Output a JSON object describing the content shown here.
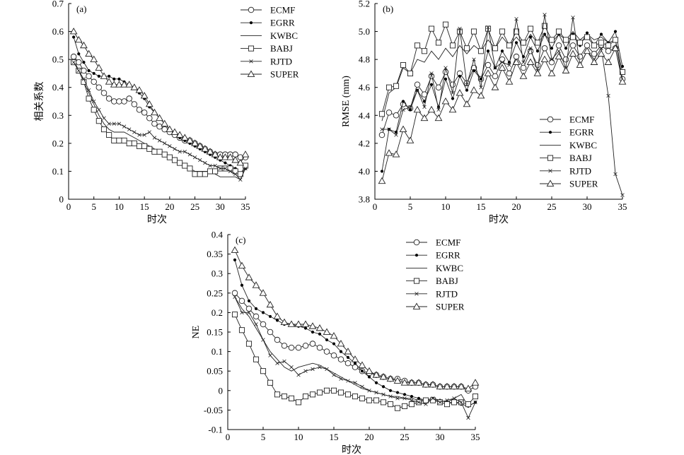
{
  "chart_data": [
    {
      "type": "line",
      "panel_label": "(a)",
      "xlabel": "时次",
      "ylabel": "相关系数",
      "xlim": [
        0,
        35
      ],
      "ylim": [
        0,
        0.7
      ],
      "xticks": [
        "0",
        "5",
        "10",
        "15",
        "20",
        "25",
        "30",
        "35"
      ],
      "yticks": [
        "0",
        "0.1",
        "0.2",
        "0.3",
        "0.4",
        "0.5",
        "0.6",
        "0.7"
      ],
      "legend_position": "top-right",
      "x": [
        1,
        2,
        3,
        4,
        5,
        6,
        7,
        8,
        9,
        10,
        11,
        12,
        13,
        14,
        15,
        16,
        17,
        18,
        19,
        20,
        21,
        22,
        23,
        24,
        25,
        26,
        27,
        28,
        29,
        30,
        31,
        32,
        33,
        34,
        35
      ],
      "series": [
        {
          "name": "ECMF",
          "marker": "circle",
          "values": [
            0.51,
            0.49,
            0.46,
            0.44,
            0.42,
            0.4,
            0.38,
            0.36,
            0.35,
            0.35,
            0.35,
            0.36,
            0.34,
            0.32,
            0.31,
            0.29,
            0.27,
            0.26,
            0.25,
            0.24,
            0.23,
            0.22,
            0.21,
            0.21,
            0.2,
            0.19,
            0.18,
            0.17,
            0.16,
            0.16,
            0.16,
            0.16,
            0.16,
            0.15,
            0.15
          ]
        },
        {
          "name": "EGRR",
          "marker": "dot",
          "values": [
            0.58,
            0.52,
            0.49,
            0.46,
            0.45,
            0.44,
            0.44,
            0.44,
            0.43,
            0.43,
            0.42,
            0.41,
            0.4,
            0.38,
            0.36,
            0.33,
            0.31,
            0.29,
            0.27,
            0.25,
            0.24,
            0.22,
            0.21,
            0.2,
            0.19,
            0.18,
            0.17,
            0.16,
            0.15,
            0.14,
            0.13,
            0.12,
            0.11,
            0.09,
            0.11
          ]
        },
        {
          "name": "KWBC",
          "marker": "none",
          "values": [
            0.5,
            0.46,
            0.42,
            0.38,
            0.34,
            0.3,
            0.27,
            0.25,
            0.24,
            0.24,
            0.24,
            0.23,
            0.22,
            0.21,
            0.2,
            0.19,
            0.18,
            0.17,
            0.16,
            0.15,
            0.14,
            0.13,
            0.12,
            0.11,
            0.1,
            0.1,
            0.1,
            0.1,
            0.09,
            0.08,
            0.08,
            0.08,
            0.08,
            0.07,
            0.12
          ]
        },
        {
          "name": "BABJ",
          "marker": "square",
          "values": [
            0.49,
            0.46,
            0.42,
            0.36,
            0.32,
            0.28,
            0.25,
            0.23,
            0.21,
            0.21,
            0.21,
            0.2,
            0.2,
            0.19,
            0.19,
            0.18,
            0.17,
            0.17,
            0.16,
            0.15,
            0.14,
            0.13,
            0.12,
            0.11,
            0.09,
            0.09,
            0.09,
            0.1,
            0.1,
            0.11,
            0.11,
            0.11,
            0.1,
            0.09,
            0.12
          ]
        },
        {
          "name": "RJTD",
          "marker": "cross",
          "values": [
            0.49,
            0.46,
            0.43,
            0.39,
            0.35,
            0.32,
            0.29,
            0.27,
            0.27,
            0.27,
            0.26,
            0.25,
            0.24,
            0.23,
            0.23,
            0.24,
            0.22,
            0.21,
            0.2,
            0.19,
            0.18,
            0.17,
            0.17,
            0.16,
            0.15,
            0.14,
            0.13,
            0.12,
            0.12,
            0.11,
            0.11,
            0.1,
            0.09,
            0.07,
            0.11
          ]
        },
        {
          "name": "SUPER",
          "marker": "triangle",
          "values": [
            0.6,
            0.57,
            0.55,
            0.52,
            0.5,
            0.47,
            0.44,
            0.42,
            0.41,
            0.41,
            0.41,
            0.41,
            0.4,
            0.39,
            0.37,
            0.34,
            0.31,
            0.29,
            0.27,
            0.25,
            0.24,
            0.23,
            0.22,
            0.21,
            0.2,
            0.19,
            0.18,
            0.17,
            0.16,
            0.15,
            0.15,
            0.15,
            0.14,
            0.13,
            0.16
          ]
        }
      ]
    },
    {
      "type": "line",
      "panel_label": "(b)",
      "xlabel": "时次",
      "ylabel": "RMSE (mm)",
      "xlim": [
        0,
        35
      ],
      "ylim": [
        3.8,
        5.2
      ],
      "xticks": [
        "0",
        "5",
        "10",
        "15",
        "20",
        "25",
        "30",
        "35"
      ],
      "yticks": [
        "3.8",
        "4.0",
        "4.2",
        "4.4",
        "4.6",
        "4.8",
        "5.0",
        "5.2"
      ],
      "legend_position": "bottom-right",
      "x": [
        1,
        2,
        3,
        4,
        5,
        6,
        7,
        8,
        9,
        10,
        11,
        12,
        13,
        14,
        15,
        16,
        17,
        18,
        19,
        20,
        21,
        22,
        23,
        24,
        25,
        26,
        27,
        28,
        29,
        30,
        31,
        32,
        33,
        34,
        35
      ],
      "series": [
        {
          "name": "ECMF",
          "marker": "circle",
          "values": [
            4.26,
            4.42,
            4.4,
            4.48,
            4.45,
            4.62,
            4.55,
            4.68,
            4.6,
            4.71,
            4.62,
            4.7,
            4.63,
            4.74,
            4.66,
            4.76,
            4.68,
            4.8,
            4.7,
            4.82,
            4.74,
            4.86,
            4.76,
            4.88,
            4.78,
            4.9,
            4.8,
            4.9,
            4.82,
            4.9,
            4.84,
            4.9,
            4.86,
            4.88,
            4.66
          ]
        },
        {
          "name": "EGRR",
          "marker": "dot",
          "values": [
            4.0,
            4.3,
            4.28,
            4.5,
            4.44,
            4.58,
            4.5,
            4.62,
            4.46,
            4.66,
            4.52,
            4.68,
            4.58,
            4.72,
            4.66,
            4.86,
            4.74,
            4.86,
            4.78,
            4.92,
            4.82,
            4.96,
            4.86,
            4.98,
            4.88,
            4.98,
            4.88,
            4.98,
            4.9,
            4.99,
            4.9,
            4.98,
            4.92,
            5.0,
            4.75
          ]
        },
        {
          "name": "KWBC",
          "marker": "none",
          "values": [
            4.36,
            4.56,
            4.6,
            4.74,
            4.7,
            4.8,
            4.78,
            4.86,
            4.8,
            4.88,
            4.82,
            4.9,
            4.84,
            4.9,
            4.86,
            4.94,
            4.88,
            4.96,
            4.9,
            4.96,
            4.9,
            4.98,
            4.92,
            4.98,
            4.92,
            4.98,
            4.94,
            5.0,
            4.94,
            4.98,
            4.94,
            4.96,
            4.92,
            4.94,
            4.66
          ]
        },
        {
          "name": "BABJ",
          "marker": "square",
          "values": [
            4.41,
            4.6,
            4.61,
            4.76,
            4.7,
            4.9,
            4.86,
            5.02,
            4.92,
            5.05,
            4.9,
            5.0,
            4.88,
            5.0,
            4.86,
            5.02,
            4.88,
            5.0,
            4.9,
            5.0,
            4.92,
            5.02,
            4.92,
            5.04,
            4.94,
            5.0,
            4.94,
            4.96,
            4.92,
            4.96,
            4.9,
            4.92,
            4.9,
            4.94,
            4.71
          ]
        },
        {
          "name": "RJTD",
          "marker": "cross",
          "values": [
            4.3,
            4.3,
            4.26,
            4.44,
            4.46,
            4.58,
            4.46,
            4.7,
            4.44,
            4.74,
            4.56,
            5.02,
            4.62,
            4.8,
            4.6,
            5.03,
            4.74,
            4.78,
            4.76,
            5.09,
            4.78,
            4.88,
            4.72,
            5.12,
            4.8,
            4.86,
            4.74,
            5.1,
            4.76,
            4.86,
            4.8,
            4.88,
            4.54,
            3.98,
            3.83
          ]
        },
        {
          "name": "SUPER",
          "marker": "triangle",
          "values": [
            3.93,
            4.13,
            4.12,
            4.3,
            4.22,
            4.44,
            4.38,
            4.44,
            4.38,
            4.5,
            4.44,
            4.56,
            4.48,
            4.58,
            4.54,
            4.7,
            4.6,
            4.74,
            4.64,
            4.78,
            4.68,
            4.78,
            4.7,
            4.8,
            4.7,
            4.82,
            4.72,
            4.84,
            4.76,
            4.86,
            4.78,
            4.84,
            4.78,
            4.88,
            4.64
          ]
        }
      ]
    },
    {
      "type": "line",
      "panel_label": "(c)",
      "xlabel": "时次",
      "ylabel": "NE",
      "xlim": [
        0,
        35
      ],
      "ylim": [
        -0.1,
        0.4
      ],
      "xticks": [
        "0",
        "5",
        "10",
        "15",
        "20",
        "25",
        "30",
        "35"
      ],
      "yticks": [
        "-0.1",
        "-0.05",
        "0",
        "0.05",
        "0.1",
        "0.15",
        "0.2",
        "0.25",
        "0.3",
        "0.35",
        "0.4"
      ],
      "legend_position": "top-right",
      "x": [
        1,
        2,
        3,
        4,
        5,
        6,
        7,
        8,
        9,
        10,
        11,
        12,
        13,
        14,
        15,
        16,
        17,
        18,
        19,
        20,
        21,
        22,
        23,
        24,
        25,
        26,
        27,
        28,
        29,
        30,
        31,
        32,
        33,
        34,
        35
      ],
      "series": [
        {
          "name": "ECMF",
          "marker": "circle",
          "values": [
            0.25,
            0.23,
            0.21,
            0.19,
            0.17,
            0.15,
            0.13,
            0.115,
            0.11,
            0.11,
            0.115,
            0.12,
            0.11,
            0.1,
            0.09,
            0.08,
            0.07,
            0.06,
            0.05,
            0.045,
            0.04,
            0.035,
            0.03,
            0.03,
            0.025,
            0.02,
            0.02,
            0.015,
            0.015,
            0.01,
            0.01,
            0.01,
            0.01,
            0.0,
            0.01
          ]
        },
        {
          "name": "EGRR",
          "marker": "dot",
          "values": [
            0.335,
            0.27,
            0.23,
            0.21,
            0.2,
            0.19,
            0.18,
            0.17,
            0.17,
            0.165,
            0.16,
            0.15,
            0.145,
            0.13,
            0.12,
            0.1,
            0.085,
            0.07,
            0.05,
            0.035,
            0.02,
            0.01,
            0.0,
            -0.005,
            -0.01,
            -0.015,
            -0.02,
            -0.025,
            -0.02,
            -0.025,
            -0.03,
            -0.03,
            -0.035,
            -0.04,
            -0.03
          ]
        },
        {
          "name": "KWBC",
          "marker": "none",
          "values": [
            0.24,
            0.21,
            0.19,
            0.16,
            0.13,
            0.1,
            0.08,
            0.06,
            0.05,
            0.06,
            0.065,
            0.07,
            0.065,
            0.055,
            0.045,
            0.035,
            0.025,
            0.015,
            0.005,
            0.0,
            -0.005,
            -0.01,
            -0.015,
            -0.015,
            -0.02,
            -0.02,
            -0.025,
            -0.025,
            -0.02,
            -0.025,
            -0.03,
            -0.02,
            -0.01,
            -0.04,
            -0.03
          ]
        },
        {
          "name": "BABJ",
          "marker": "square",
          "values": [
            0.195,
            0.155,
            0.12,
            0.08,
            0.05,
            0.02,
            -0.01,
            -0.015,
            -0.02,
            -0.03,
            -0.015,
            -0.01,
            -0.005,
            0.0,
            0.0,
            -0.005,
            -0.01,
            -0.015,
            -0.02,
            -0.025,
            -0.025,
            -0.03,
            -0.035,
            -0.045,
            -0.04,
            -0.035,
            -0.03,
            -0.025,
            -0.025,
            -0.03,
            -0.035,
            -0.03,
            -0.03,
            -0.035,
            -0.015
          ]
        },
        {
          "name": "RJTD",
          "marker": "cross",
          "values": [
            0.24,
            0.2,
            0.2,
            0.17,
            0.13,
            0.09,
            0.07,
            0.075,
            0.06,
            0.04,
            0.05,
            0.055,
            0.06,
            0.055,
            0.04,
            0.03,
            0.025,
            0.02,
            0.01,
            0.0,
            -0.005,
            -0.01,
            -0.015,
            -0.02,
            -0.02,
            -0.025,
            -0.03,
            -0.035,
            -0.02,
            -0.03,
            -0.025,
            -0.02,
            -0.03,
            -0.07,
            -0.03
          ]
        },
        {
          "name": "SUPER",
          "marker": "triangle",
          "values": [
            0.36,
            0.32,
            0.29,
            0.27,
            0.25,
            0.22,
            0.19,
            0.175,
            0.17,
            0.17,
            0.17,
            0.165,
            0.16,
            0.15,
            0.14,
            0.12,
            0.1,
            0.08,
            0.065,
            0.05,
            0.04,
            0.035,
            0.03,
            0.025,
            0.02,
            0.02,
            0.02,
            0.015,
            0.015,
            0.01,
            0.01,
            0.01,
            0.01,
            0.005,
            0.02
          ]
        }
      ]
    }
  ]
}
